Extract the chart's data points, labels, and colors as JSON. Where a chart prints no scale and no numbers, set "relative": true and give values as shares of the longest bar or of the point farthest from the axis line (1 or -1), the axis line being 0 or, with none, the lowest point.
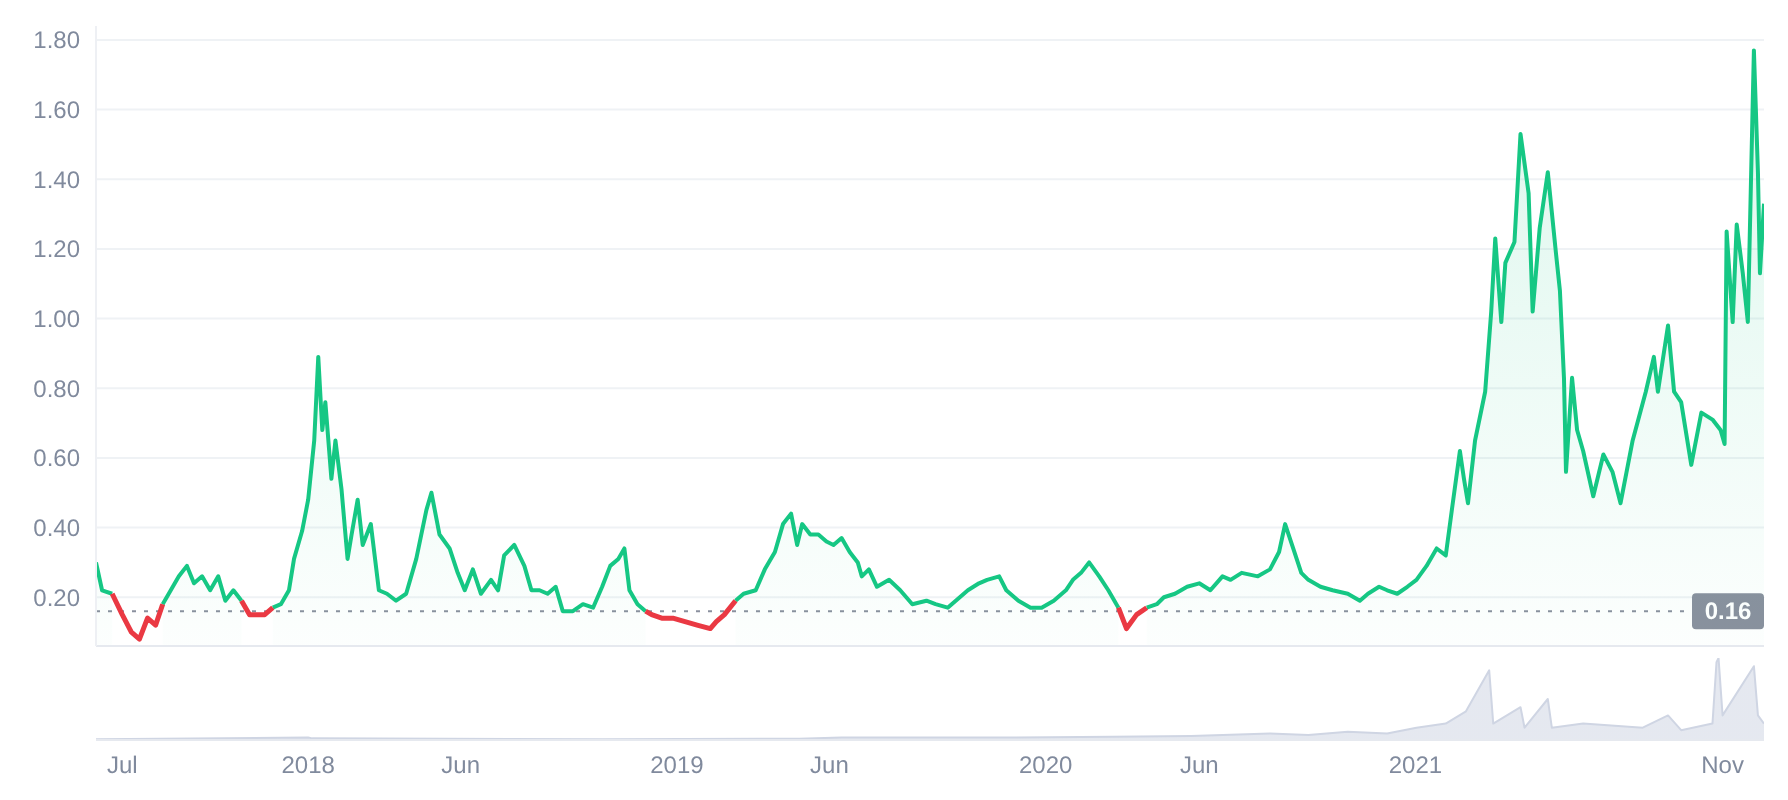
{
  "chart_data": [
    {
      "type": "line",
      "x": [
        "2017-06-05",
        "2017-06-11",
        "2017-06-21",
        "2017-07-01",
        "2017-07-10",
        "2017-07-18",
        "2017-07-26",
        "2017-08-03",
        "2017-08-10",
        "2017-08-18",
        "2017-08-26",
        "2017-09-03",
        "2017-09-10",
        "2017-09-18",
        "2017-09-26",
        "2017-10-04",
        "2017-10-11",
        "2017-10-19",
        "2017-10-27",
        "2017-11-04",
        "2017-11-12",
        "2017-11-19",
        "2017-11-27",
        "2017-12-05",
        "2017-12-13",
        "2017-12-18",
        "2017-12-26",
        "2018-01-01",
        "2018-01-07",
        "2018-01-11",
        "2018-01-15",
        "2018-01-18",
        "2018-01-24",
        "2018-01-28",
        "2018-02-03",
        "2018-02-09",
        "2018-02-13",
        "2018-02-19",
        "2018-02-24",
        "2018-03-04",
        "2018-03-12",
        "2018-03-20",
        "2018-03-29",
        "2018-04-08",
        "2018-04-18",
        "2018-04-28",
        "2018-05-03",
        "2018-05-11",
        "2018-05-21",
        "2018-05-29",
        "2018-06-05",
        "2018-06-13",
        "2018-06-21",
        "2018-07-01",
        "2018-07-08",
        "2018-07-14",
        "2018-07-24",
        "2018-08-03",
        "2018-08-10",
        "2018-08-18",
        "2018-08-26",
        "2018-09-03",
        "2018-09-10",
        "2018-09-20",
        "2018-09-30",
        "2018-10-10",
        "2018-10-19",
        "2018-10-27",
        "2018-11-04",
        "2018-11-10",
        "2018-11-15",
        "2018-11-23",
        "2018-12-01",
        "2018-12-07",
        "2018-12-17",
        "2018-12-28",
        "2019-01-09",
        "2019-01-21",
        "2019-02-03",
        "2019-02-09",
        "2019-02-17",
        "2019-02-28",
        "2019-03-08",
        "2019-03-20",
        "2019-03-29",
        "2019-04-08",
        "2019-04-16",
        "2019-04-24",
        "2019-04-30",
        "2019-05-05",
        "2019-05-13",
        "2019-05-21",
        "2019-05-29",
        "2019-06-05",
        "2019-06-13",
        "2019-06-21",
        "2019-06-29",
        "2019-07-03",
        "2019-07-10",
        "2019-07-18",
        "2019-07-30",
        "2019-08-10",
        "2019-08-22",
        "2019-09-05",
        "2019-09-14",
        "2019-09-26",
        "2019-10-04",
        "2019-10-16",
        "2019-10-27",
        "2019-11-04",
        "2019-11-16",
        "2019-11-23",
        "2019-12-05",
        "2019-12-17",
        "2019-12-28",
        "2020-01-09",
        "2020-01-21",
        "2020-01-28",
        "2020-02-05",
        "2020-02-13",
        "2020-02-23",
        "2020-03-03",
        "2020-03-13",
        "2020-03-21",
        "2020-03-31",
        "2020-04-10",
        "2020-04-20",
        "2020-04-27",
        "2020-05-08",
        "2020-05-20",
        "2020-06-01",
        "2020-06-12",
        "2020-06-24",
        "2020-07-02",
        "2020-07-13",
        "2020-07-29",
        "2020-08-10",
        "2020-08-19",
        "2020-08-25",
        "2020-09-02",
        "2020-09-10",
        "2020-09-17",
        "2020-09-29",
        "2020-10-11",
        "2020-10-26",
        "2020-11-07",
        "2020-11-15",
        "2020-11-26",
        "2020-12-04",
        "2020-12-14",
        "2020-12-24",
        "2021-01-02",
        "2021-01-12",
        "2021-01-22",
        "2021-01-31",
        "2021-02-06",
        "2021-02-14",
        "2021-02-18",
        "2021-02-22",
        "2021-03-01",
        "2021-03-11",
        "2021-03-17",
        "2021-03-21",
        "2021-03-27",
        "2021-03-31",
        "2021-04-09",
        "2021-04-15",
        "2021-04-23",
        "2021-04-27",
        "2021-05-04",
        "2021-05-12",
        "2021-05-20",
        "2021-05-24",
        "2021-05-28",
        "2021-05-30",
        "2021-06-05",
        "2021-06-10",
        "2021-06-16",
        "2021-06-26",
        "2021-07-06",
        "2021-07-15",
        "2021-07-23",
        "2021-08-04",
        "2021-08-17",
        "2021-08-25",
        "2021-08-29",
        "2021-09-08",
        "2021-09-14",
        "2021-09-21",
        "2021-10-01",
        "2021-10-11",
        "2021-10-22",
        "2021-10-30",
        "2021-11-03",
        "2021-11-05",
        "2021-11-11",
        "2021-11-15",
        "2021-11-21",
        "2021-11-26",
        "2021-12-02",
        "2021-12-06",
        "2021-12-08",
        "2021-12-12"
      ],
      "series": [
        {
          "type": "area",
          "color": "#16c784",
          "values": [
            0.3,
            0.22,
            0.21,
            null,
            null,
            null,
            null,
            null,
            0.18,
            0.22,
            0.26,
            0.29,
            0.24,
            0.26,
            0.22,
            0.26,
            0.19,
            0.22,
            0.19,
            null,
            null,
            null,
            0.17,
            0.18,
            0.22,
            0.31,
            0.39,
            0.48,
            0.65,
            0.89,
            0.68,
            0.76,
            0.54,
            0.65,
            0.51,
            0.31,
            0.38,
            0.48,
            0.35,
            0.41,
            0.22,
            0.21,
            0.19,
            0.21,
            0.31,
            0.45,
            0.5,
            0.38,
            0.34,
            0.27,
            0.22,
            0.28,
            0.21,
            0.25,
            0.22,
            0.32,
            0.35,
            0.29,
            0.22,
            0.22,
            0.21,
            0.23,
            0.16,
            0.16,
            0.18,
            0.17,
            0.23,
            0.29,
            0.31,
            0.34,
            0.22,
            0.18,
            0.16,
            null,
            null,
            null,
            null,
            null,
            null,
            null,
            null,
            0.19,
            0.21,
            0.22,
            0.28,
            0.33,
            0.41,
            0.44,
            0.35,
            0.41,
            0.38,
            0.38,
            0.36,
            0.35,
            0.37,
            0.33,
            0.3,
            0.26,
            0.28,
            0.23,
            0.25,
            0.22,
            0.18,
            0.19,
            0.18,
            0.17,
            0.19,
            0.22,
            0.24,
            0.25,
            0.26,
            0.22,
            0.19,
            0.17,
            0.17,
            0.19,
            0.22,
            0.25,
            0.27,
            0.3,
            0.26,
            0.22,
            0.17,
            null,
            null,
            0.17,
            0.18,
            0.2,
            0.21,
            0.23,
            0.24,
            0.22,
            0.26,
            0.25,
            0.27,
            0.26,
            0.28,
            0.33,
            0.41,
            0.34,
            0.27,
            0.25,
            0.23,
            0.22,
            0.21,
            0.19,
            0.21,
            0.23,
            0.22,
            0.21,
            0.23,
            0.25,
            0.29,
            0.34,
            0.32,
            0.45,
            0.62,
            0.54,
            0.47,
            0.65,
            0.79,
            1.02,
            1.23,
            0.99,
            1.16,
            1.22,
            1.53,
            1.36,
            1.02,
            1.26,
            1.42,
            1.19,
            1.08,
            0.83,
            0.56,
            0.83,
            0.68,
            0.62,
            0.49,
            0.61,
            0.56,
            0.47,
            0.65,
            0.79,
            0.89,
            0.79,
            0.98,
            0.79,
            0.76,
            0.58,
            0.73,
            0.71,
            0.68,
            0.64,
            1.25,
            0.99,
            1.27,
            1.13,
            0.99,
            1.77,
            1.42,
            1.13,
            1.33
          ]
        },
        {
          "type": "line",
          "color": "#ea3943",
          "values": [
            null,
            null,
            0.21,
            0.15,
            0.1,
            0.08,
            0.14,
            0.12,
            0.18,
            null,
            null,
            null,
            null,
            null,
            null,
            null,
            null,
            null,
            0.19,
            0.15,
            0.15,
            0.15,
            0.17,
            null,
            null,
            null,
            null,
            null,
            null,
            null,
            null,
            null,
            null,
            null,
            null,
            null,
            null,
            null,
            null,
            null,
            null,
            null,
            null,
            null,
            null,
            null,
            null,
            null,
            null,
            null,
            null,
            null,
            null,
            null,
            null,
            null,
            null,
            null,
            null,
            null,
            null,
            null,
            null,
            null,
            null,
            null,
            null,
            null,
            null,
            null,
            null,
            null,
            0.16,
            0.15,
            0.14,
            0.14,
            0.13,
            0.12,
            0.11,
            0.13,
            0.15,
            0.19,
            null,
            null,
            null,
            null,
            null,
            null,
            null,
            null,
            null,
            null,
            null,
            null,
            null,
            null,
            null,
            null,
            null,
            null,
            null,
            null,
            null,
            null,
            null,
            null,
            null,
            null,
            null,
            null,
            null,
            null,
            null,
            null,
            null,
            null,
            null,
            null,
            null,
            null,
            null,
            null,
            0.17,
            0.11,
            0.15,
            0.17,
            null,
            null,
            null,
            null,
            null,
            null,
            null,
            null,
            null,
            null,
            null,
            null,
            null,
            null,
            null,
            null,
            null,
            null,
            null,
            null,
            null,
            null,
            null,
            null,
            null,
            null,
            null,
            null,
            null,
            null,
            null,
            null,
            null,
            null,
            null,
            null,
            null,
            null,
            null,
            null,
            null,
            null,
            null,
            null,
            null,
            null,
            null,
            null,
            null,
            null,
            null,
            null,
            null,
            null,
            null,
            null,
            null,
            null,
            null,
            null,
            null,
            null,
            null,
            null,
            null,
            null,
            null,
            null,
            null,
            null,
            null,
            null,
            null,
            null,
            null,
            null,
            null
          ]
        }
      ],
      "xlim": [
        "2017-06-05",
        "2021-12-12"
      ],
      "ylim": [
        0.06,
        1.84
      ],
      "yticks": [
        {
          "value": 0.2,
          "label": "0.20"
        },
        {
          "value": 0.4,
          "label": "0.40"
        },
        {
          "value": 0.6,
          "label": "0.60"
        },
        {
          "value": 0.8,
          "label": "0.80"
        },
        {
          "value": 1,
          "label": "1.00"
        },
        {
          "value": 1.2,
          "label": "1.20"
        },
        {
          "value": 1.4,
          "label": "1.40"
        },
        {
          "value": 1.6,
          "label": "1.60"
        },
        {
          "value": 1.8,
          "label": "1.80"
        }
      ],
      "grid": "y",
      "tick_labels": "y",
      "ref_lines": [
        {
          "axis": "y",
          "value": 0.16,
          "label": "0.16",
          "line_style": "dotted",
          "color": "#8a909e"
        }
      ]
    },
    {
      "type": "area",
      "relative": true,
      "x": [
        "2017-06-05",
        "2018-01-01",
        "2018-01-05",
        "2018-10-19",
        "2019-05-02",
        "2019-06-13",
        "2019-11-12",
        "2020-03-07",
        "2020-05-24",
        "2020-08-10",
        "2020-09-17",
        "2020-10-26",
        "2020-12-04",
        "2021-01-02",
        "2021-01-31",
        "2021-02-20",
        "2021-03-15",
        "2021-03-19",
        "2021-04-15",
        "2021-04-19",
        "2021-05-12",
        "2021-05-16",
        "2021-06-16",
        "2021-08-14",
        "2021-09-08",
        "2021-09-21",
        "2021-10-22",
        "2021-10-26",
        "2021-10-28",
        "2021-11-01",
        "2021-12-02",
        "2021-12-06",
        "2021-12-12"
      ],
      "series": [
        {
          "color": "#cfd5e3",
          "values": [
            0.01,
            0.03,
            0.02,
            0.01,
            0.015,
            0.03,
            0.03,
            0.04,
            0.05,
            0.08,
            0.06,
            0.1,
            0.08,
            0.15,
            0.2,
            0.35,
            0.85,
            0.2,
            0.4,
            0.15,
            0.5,
            0.15,
            0.2,
            0.15,
            0.3,
            0.12,
            0.2,
            0.95,
            1,
            0.3,
            0.9,
            0.3,
            0.2
          ]
        }
      ],
      "xlim": [
        "2017-06-05",
        "2021-12-12"
      ],
      "xticks": [
        {
          "value": "2017-07-01",
          "label": "Jul"
        },
        {
          "value": "2018-01-01",
          "label": "2018"
        },
        {
          "value": "2018-06-01",
          "label": "Jun"
        },
        {
          "value": "2019-01-01",
          "label": "2019"
        },
        {
          "value": "2019-06-01",
          "label": "Jun"
        },
        {
          "value": "2020-01-01",
          "label": "2020"
        },
        {
          "value": "2020-06-01",
          "label": "Jun"
        },
        {
          "value": "2021-01-01",
          "label": "2021"
        },
        {
          "value": "2021-11-01",
          "label": "Nov"
        }
      ],
      "tick_labels": "x"
    }
  ]
}
